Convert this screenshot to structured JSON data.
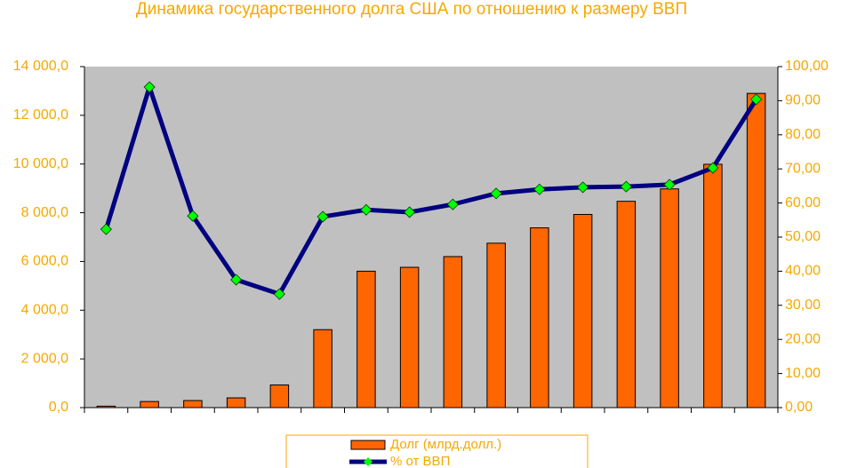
{
  "chart_data": {
    "type": "bar-line",
    "title": "Динамика государственного долга США по отношению к размеру ВВП",
    "categories": [
      null,
      null,
      null,
      null,
      null,
      null,
      null,
      null,
      null,
      null,
      null,
      null,
      null,
      null,
      null,
      null
    ],
    "series": [
      {
        "name": "Долг (млрд.долл.)",
        "color": "#ff6600",
        "type": "bar",
        "values": [
          60,
          250,
          290,
          400,
          930,
          3200,
          5600,
          5760,
          6200,
          6750,
          7380,
          7930,
          8470,
          8980,
          9990,
          12900
        ]
      },
      {
        "name": "% от ВВП",
        "color": "#000080",
        "marker_color": "#00ff00",
        "type": "line",
        "axis": "y2",
        "values": [
          52.3,
          94,
          56.2,
          37.5,
          33.3,
          56,
          58,
          57.3,
          59.6,
          62.8,
          64,
          64.6,
          64.8,
          65.4,
          70.3,
          90.4
        ]
      }
    ],
    "ylim": [
      0,
      14000
    ],
    "yticks": [
      {
        "value": 0,
        "label": "0,0"
      },
      {
        "value": 2000,
        "label": "2 000,0"
      },
      {
        "value": 4000,
        "label": "4 000,0"
      },
      {
        "value": 6000,
        "label": "6 000,0"
      },
      {
        "value": 8000,
        "label": "8 000,0"
      },
      {
        "value": 10000,
        "label": "10 000,0"
      },
      {
        "value": 12000,
        "label": "12 000,0"
      },
      {
        "value": 14000,
        "label": "14 000,0"
      }
    ],
    "y2lim": [
      0,
      100
    ],
    "y2ticks": [
      {
        "value": 0,
        "label": "0,00"
      },
      {
        "value": 10,
        "label": "10,00"
      },
      {
        "value": 20,
        "label": "20,00"
      },
      {
        "value": 30,
        "label": "30,00"
      },
      {
        "value": 40,
        "label": "40,00"
      },
      {
        "value": 50,
        "label": "50,00"
      },
      {
        "value": 60,
        "label": "60,00"
      },
      {
        "value": 70,
        "label": "70,00"
      },
      {
        "value": 80,
        "label": "80,00"
      },
      {
        "value": 90,
        "label": "90,00"
      },
      {
        "value": 100,
        "label": "100,00"
      }
    ],
    "grid": false,
    "legend": "bottom"
  }
}
